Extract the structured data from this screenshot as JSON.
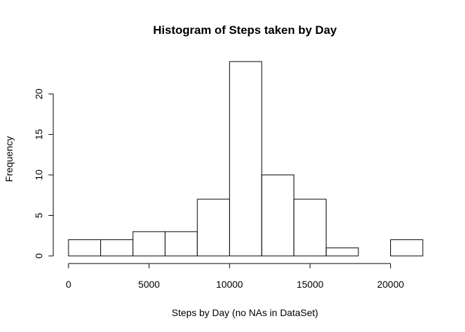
{
  "chart_data": {
    "type": "bar",
    "title": "Histogram of Steps taken by Day",
    "xlabel": "Steps by Day (no NAs in DataSet)",
    "ylabel": "Frequency",
    "xlim": [
      0,
      22000
    ],
    "ylim": [
      0,
      24
    ],
    "bins": [
      {
        "from": 0,
        "to": 2000,
        "count": 2
      },
      {
        "from": 2000,
        "to": 4000,
        "count": 2
      },
      {
        "from": 4000,
        "to": 6000,
        "count": 3
      },
      {
        "from": 6000,
        "to": 8000,
        "count": 3
      },
      {
        "from": 8000,
        "to": 10000,
        "count": 7
      },
      {
        "from": 10000,
        "to": 12000,
        "count": 24
      },
      {
        "from": 12000,
        "to": 14000,
        "count": 10
      },
      {
        "from": 14000,
        "to": 16000,
        "count": 7
      },
      {
        "from": 16000,
        "to": 18000,
        "count": 1
      },
      {
        "from": 18000,
        "to": 20000,
        "count": 0
      },
      {
        "from": 20000,
        "to": 22000,
        "count": 2
      }
    ],
    "x_ticks": [
      "0",
      "5000",
      "10000",
      "15000",
      "20000"
    ],
    "y_ticks": [
      "0",
      "5",
      "10",
      "15",
      "20"
    ],
    "grid": false,
    "bar_fill": "#ffffff",
    "bar_stroke": "#000000"
  }
}
